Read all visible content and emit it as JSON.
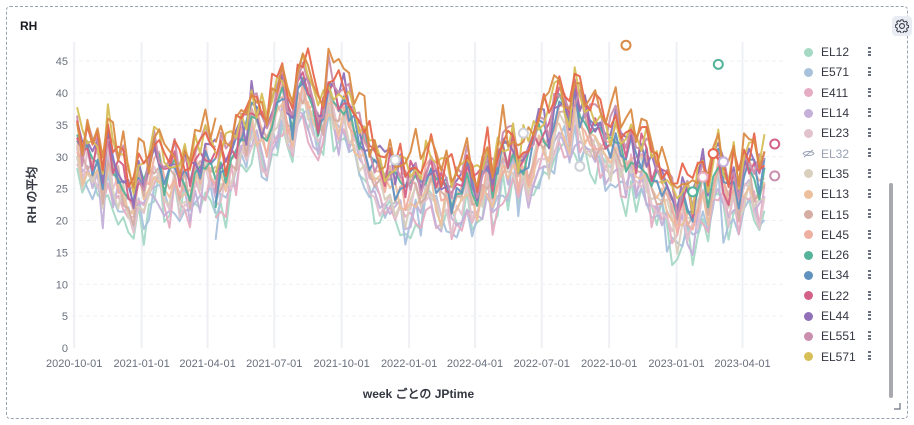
{
  "panel": {
    "title": "RH"
  },
  "chart_data": {
    "type": "line",
    "title": "RH",
    "xlabel": "week ごとの JPtime",
    "ylabel": "RH の平均",
    "ylim": [
      0,
      48
    ],
    "yticks": [
      0,
      5,
      10,
      15,
      20,
      25,
      30,
      35,
      40,
      45
    ],
    "xlim": [
      "2020-09-28",
      "2023-05-29"
    ],
    "xticks": [
      "2020-10-01",
      "2021-01-01",
      "2021-04-01",
      "2021-07-01",
      "2021-10-01",
      "2022-01-01",
      "2022-04-01",
      "2022-07-01",
      "2022-10-01",
      "2023-01-01",
      "2023-04-01"
    ],
    "legend_position": "right",
    "series": [
      {
        "name": "EL12",
        "color": "#a5d8c5"
      },
      {
        "name": "E571",
        "color": "#a9c2dc"
      },
      {
        "name": "E411",
        "color": "#e6adc2"
      },
      {
        "name": "EL14",
        "color": "#c4b0d8"
      },
      {
        "name": "EL23",
        "color": "#e2c2cc"
      },
      {
        "name": "EL32",
        "color": "#cfd1d8",
        "hidden": true
      },
      {
        "name": "EL35",
        "color": "#d8cfbd"
      },
      {
        "name": "EL13",
        "color": "#ecc09c"
      },
      {
        "name": "EL15",
        "color": "#d5ada3"
      },
      {
        "name": "EL45",
        "color": "#efafa0"
      },
      {
        "name": "EL26",
        "color": "#54b399"
      },
      {
        "name": "EL34",
        "color": "#6092c0"
      },
      {
        "name": "EL22",
        "color": "#d36086"
      },
      {
        "name": "EL44",
        "color": "#9170b8"
      },
      {
        "name": "EL551",
        "color": "#ca8eae"
      },
      {
        "name": "EL571",
        "color": "#d6bf57"
      }
    ],
    "extra_series_colors": [
      "#e7664c",
      "#da8b45"
    ],
    "ensemble_mean": [
      [
        33,
        29,
        31,
        28,
        30,
        26,
        32,
        28,
        27,
        26,
        24,
        22,
        26,
        25,
        27,
        30,
        29,
        26,
        27,
        28,
        26,
        27,
        25,
        29,
        28,
        30,
        28,
        28
      ],
      [
        24,
        28,
        27,
        30,
        31,
        34,
        33,
        37,
        36,
        34,
        32,
        36,
        38,
        40,
        36,
        34,
        39,
        41,
        40,
        38,
        35,
        36,
        40,
        39,
        37,
        38,
        36,
        34,
        33,
        32,
        29,
        28,
        27,
        26,
        27,
        25,
        26,
        24,
        25,
        26,
        24,
        27,
        28,
        25,
        24,
        26,
        23,
        25,
        24,
        27,
        24,
        23,
        26,
        28,
        25,
        27,
        30,
        29,
        31,
        27,
        29,
        28,
        31,
        33,
        34,
        32,
        35,
        37,
        36,
        34,
        38,
        36,
        35,
        34,
        33,
        34,
        32,
        31,
        33,
        30,
        29,
        31,
        28,
        30,
        29,
        27,
        26,
        25,
        24,
        22,
        20,
        23,
        22,
        21,
        24,
        26,
        23,
        27,
        29,
        25,
        24,
        26,
        23,
        27,
        28,
        26,
        25,
        27
      ]
    ],
    "markers": [
      {
        "date": "2022-10-24",
        "y": 47.5,
        "color": "#da8b45"
      },
      {
        "date": "2023-02-27",
        "y": 44.5,
        "color": "#54b399"
      },
      {
        "date": "2023-01-23",
        "y": 24.5,
        "color": "#54b399"
      },
      {
        "date": "2023-02-20",
        "y": 30.5,
        "color": "#e7664c"
      },
      {
        "date": "2023-03-06",
        "y": 29.2,
        "color": "#c4b0d8"
      },
      {
        "date": "2023-02-06",
        "y": 26.8,
        "color": "#e6adc2"
      },
      {
        "date": "2023-05-15",
        "y": 32.0,
        "color": "#d36086"
      },
      {
        "date": "2023-05-15",
        "y": 27.0,
        "color": "#ca8eae"
      },
      {
        "date": "2022-06-06",
        "y": 33.7,
        "color": "#cfd1d8"
      },
      {
        "date": "2021-12-13",
        "y": 29.5,
        "color": "#cfd1d8"
      },
      {
        "date": "2022-08-22",
        "y": 28.5,
        "color": "#cfd1d8"
      }
    ]
  },
  "icons": {
    "settings": "gear-icon",
    "hidden_series": "eye-closed-icon",
    "legend_actions": "vertical-dots-icon",
    "resize": "resize-corner-icon"
  }
}
